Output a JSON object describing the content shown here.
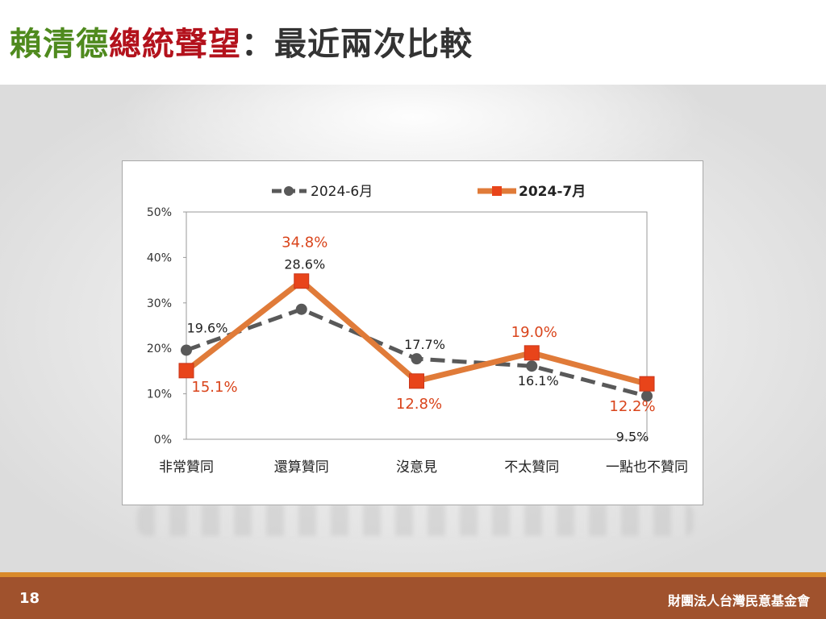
{
  "title": {
    "part1": "賴清德",
    "part2": "總統聲望",
    "part3": "：最近兩次比較"
  },
  "footer": {
    "page_number": "18",
    "organization": "財團法人台灣民意基金會"
  },
  "chart_data": {
    "type": "line",
    "categories": [
      "非常贊同",
      "還算贊同",
      "沒意見",
      "不太贊同",
      "一點也不贊同"
    ],
    "series": [
      {
        "name": "2024-6月",
        "values": [
          19.6,
          28.6,
          17.7,
          16.1,
          9.5
        ],
        "labels": [
          "19.6%",
          "28.6%",
          "17.7%",
          "16.1%",
          "9.5%"
        ],
        "color": "#595959",
        "style": "dashed",
        "marker": "circle"
      },
      {
        "name": "2024-7月",
        "values": [
          15.1,
          34.8,
          12.8,
          19.0,
          12.2
        ],
        "labels": [
          "15.1%",
          "34.8%",
          "12.8%",
          "19.0%",
          "12.2%"
        ],
        "color": "#e07b39",
        "marker_color": "#e8441a",
        "label_color": "#d9441b",
        "style": "solid",
        "marker": "square"
      }
    ],
    "yticks": [
      "0%",
      "10%",
      "20%",
      "30%",
      "40%",
      "50%"
    ],
    "ylim": [
      0,
      50
    ],
    "grid": false,
    "legend": "top"
  }
}
